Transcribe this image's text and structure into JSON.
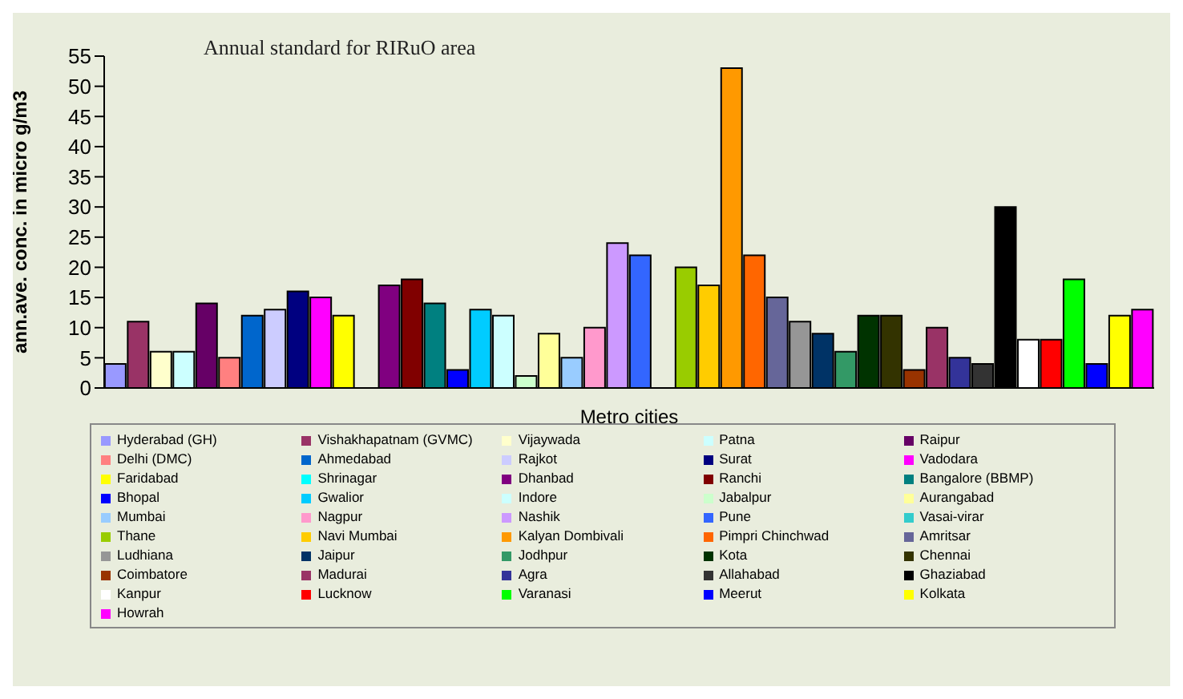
{
  "chart_data": {
    "type": "bar",
    "title": "Annual standard for RIRuO area",
    "xlabel": "Metro cities",
    "ylabel": "ann.ave. conc. in micro g/m3",
    "categories": [
      null,
      null,
      null,
      null,
      null,
      null,
      null,
      null,
      null,
      null,
      null,
      null,
      null,
      null,
      null,
      null,
      null,
      null,
      null,
      null,
      null,
      null,
      null,
      null,
      null,
      null,
      null,
      null,
      null,
      null,
      null,
      null,
      null,
      null,
      null,
      null,
      null,
      null,
      null,
      null,
      null,
      null,
      null,
      null,
      null,
      null
    ],
    "stacked": true,
    "series": [
      {
        "name": "Hyderabad (GH)",
        "color": "#9999ff",
        "values": [
          4,
          null,
          null,
          null,
          null,
          null,
          null,
          null,
          null,
          null,
          null,
          null,
          null,
          null,
          null,
          null,
          null,
          null,
          null,
          null,
          null,
          null,
          null,
          null,
          null,
          null,
          null,
          null,
          null,
          null,
          null,
          null,
          null,
          null,
          null,
          null,
          null,
          null,
          null,
          null,
          null,
          null,
          null,
          null,
          null,
          null
        ]
      },
      {
        "name": "Vishakhapatnam (GVMC)",
        "color": "#993366",
        "values": [
          null,
          11,
          null,
          null,
          null,
          null,
          null,
          null,
          null,
          null,
          null,
          null,
          null,
          null,
          null,
          null,
          null,
          null,
          null,
          null,
          null,
          null,
          null,
          null,
          null,
          null,
          null,
          null,
          null,
          null,
          null,
          null,
          null,
          null,
          null,
          null,
          null,
          null,
          null,
          null,
          null,
          null,
          null,
          null,
          null,
          null
        ]
      },
      {
        "name": "Vijaywada",
        "color": "#ffffcc",
        "values": [
          null,
          null,
          6,
          null,
          null,
          null,
          null,
          null,
          null,
          null,
          null,
          null,
          null,
          null,
          null,
          null,
          null,
          null,
          null,
          null,
          null,
          null,
          null,
          null,
          null,
          null,
          null,
          null,
          null,
          null,
          null,
          null,
          null,
          null,
          null,
          null,
          null,
          null,
          null,
          null,
          null,
          null,
          null,
          null,
          null,
          null
        ]
      },
      {
        "name": "Patna",
        "color": "#ccffff",
        "values": [
          null,
          null,
          null,
          6,
          null,
          null,
          null,
          null,
          null,
          null,
          null,
          null,
          null,
          null,
          null,
          null,
          null,
          null,
          null,
          null,
          null,
          null,
          null,
          null,
          null,
          null,
          null,
          null,
          null,
          null,
          null,
          null,
          null,
          null,
          null,
          null,
          null,
          null,
          null,
          null,
          null,
          null,
          null,
          null,
          null,
          null
        ]
      },
      {
        "name": "Raipur",
        "color": "#660066",
        "values": [
          null,
          null,
          null,
          null,
          14,
          null,
          null,
          null,
          null,
          null,
          null,
          null,
          null,
          null,
          null,
          null,
          null,
          null,
          null,
          null,
          null,
          null,
          null,
          null,
          null,
          null,
          null,
          null,
          null,
          null,
          null,
          null,
          null,
          null,
          null,
          null,
          null,
          null,
          null,
          null,
          null,
          null,
          null,
          null,
          null,
          null
        ]
      },
      {
        "name": "Delhi (DMC)",
        "color": "#ff8080",
        "values": [
          null,
          null,
          null,
          null,
          null,
          5,
          null,
          null,
          null,
          null,
          null,
          null,
          null,
          null,
          null,
          null,
          null,
          null,
          null,
          null,
          null,
          null,
          null,
          null,
          null,
          null,
          null,
          null,
          null,
          null,
          null,
          null,
          null,
          null,
          null,
          null,
          null,
          null,
          null,
          null,
          null,
          null,
          null,
          null,
          null,
          null
        ]
      },
      {
        "name": "Ahmedabad",
        "color": "#0066cc",
        "values": [
          null,
          null,
          null,
          null,
          null,
          null,
          12,
          null,
          null,
          null,
          null,
          null,
          null,
          null,
          null,
          null,
          null,
          null,
          null,
          null,
          null,
          null,
          null,
          null,
          null,
          null,
          null,
          null,
          null,
          null,
          null,
          null,
          null,
          null,
          null,
          null,
          null,
          null,
          null,
          null,
          null,
          null,
          null,
          null,
          null,
          null
        ]
      },
      {
        "name": "Rajkot",
        "color": "#ccccff",
        "values": [
          null,
          null,
          null,
          null,
          null,
          null,
          null,
          13,
          null,
          null,
          null,
          null,
          null,
          null,
          null,
          null,
          null,
          null,
          null,
          null,
          null,
          null,
          null,
          null,
          null,
          null,
          null,
          null,
          null,
          null,
          null,
          null,
          null,
          null,
          null,
          null,
          null,
          null,
          null,
          null,
          null,
          null,
          null,
          null,
          null,
          null
        ]
      },
      {
        "name": "Surat",
        "color": "#000080",
        "values": [
          null,
          null,
          null,
          null,
          null,
          null,
          null,
          null,
          16,
          null,
          null,
          null,
          null,
          null,
          null,
          null,
          null,
          null,
          null,
          null,
          null,
          null,
          null,
          null,
          null,
          null,
          null,
          null,
          null,
          null,
          null,
          null,
          null,
          null,
          null,
          null,
          null,
          null,
          null,
          null,
          null,
          null,
          null,
          null,
          null,
          null
        ]
      },
      {
        "name": "Vadodara",
        "color": "#ff00ff",
        "values": [
          null,
          null,
          null,
          null,
          null,
          null,
          null,
          null,
          null,
          15,
          null,
          null,
          null,
          null,
          null,
          null,
          null,
          null,
          null,
          null,
          null,
          null,
          null,
          null,
          null,
          null,
          null,
          null,
          null,
          null,
          null,
          null,
          null,
          null,
          null,
          null,
          null,
          null,
          null,
          null,
          null,
          null,
          null,
          null,
          null,
          null
        ]
      },
      {
        "name": "Faridabad",
        "color": "#ffff00",
        "values": [
          null,
          null,
          null,
          null,
          null,
          null,
          null,
          null,
          null,
          null,
          12,
          null,
          null,
          null,
          null,
          null,
          null,
          null,
          null,
          null,
          null,
          null,
          null,
          null,
          null,
          null,
          null,
          null,
          null,
          null,
          null,
          null,
          null,
          null,
          null,
          null,
          null,
          null,
          null,
          null,
          null,
          null,
          null,
          null,
          null,
          null
        ]
      },
      {
        "name": "Shrinagar",
        "color": "#00ffff",
        "values": [
          null,
          null,
          null,
          null,
          null,
          null,
          null,
          null,
          null,
          null,
          null,
          null,
          null,
          null,
          null,
          null,
          null,
          null,
          null,
          null,
          null,
          null,
          null,
          null,
          null,
          null,
          null,
          null,
          null,
          null,
          null,
          null,
          null,
          null,
          null,
          null,
          null,
          null,
          null,
          null,
          null,
          null,
          null,
          null,
          null,
          null
        ]
      },
      {
        "name": "Dhanbad",
        "color": "#800080",
        "values": [
          null,
          null,
          null,
          null,
          null,
          null,
          null,
          null,
          null,
          null,
          null,
          null,
          17,
          null,
          null,
          null,
          null,
          null,
          null,
          null,
          null,
          null,
          null,
          null,
          null,
          null,
          null,
          null,
          null,
          null,
          null,
          null,
          null,
          null,
          null,
          null,
          null,
          null,
          null,
          null,
          null,
          null,
          null,
          null,
          null,
          null
        ]
      },
      {
        "name": "Ranchi",
        "color": "#800000",
        "values": [
          null,
          null,
          null,
          null,
          null,
          null,
          null,
          null,
          null,
          null,
          null,
          null,
          null,
          18,
          null,
          null,
          null,
          null,
          null,
          null,
          null,
          null,
          null,
          null,
          null,
          null,
          null,
          null,
          null,
          null,
          null,
          null,
          null,
          null,
          null,
          null,
          null,
          null,
          null,
          null,
          null,
          null,
          null,
          null,
          null,
          null
        ]
      },
      {
        "name": "Bangalore (BBMP)",
        "color": "#008080",
        "values": [
          null,
          null,
          null,
          null,
          null,
          null,
          null,
          null,
          null,
          null,
          null,
          null,
          null,
          null,
          14,
          null,
          null,
          null,
          null,
          null,
          null,
          null,
          null,
          null,
          null,
          null,
          null,
          null,
          null,
          null,
          null,
          null,
          null,
          null,
          null,
          null,
          null,
          null,
          null,
          null,
          null,
          null,
          null,
          null,
          null,
          null
        ]
      },
      {
        "name": "Bhopal",
        "color": "#0000ff",
        "values": [
          null,
          null,
          null,
          null,
          null,
          null,
          null,
          null,
          null,
          null,
          null,
          null,
          null,
          null,
          null,
          3,
          null,
          null,
          null,
          null,
          null,
          null,
          null,
          null,
          null,
          null,
          null,
          null,
          null,
          null,
          null,
          null,
          null,
          null,
          null,
          null,
          null,
          null,
          null,
          null,
          null,
          null,
          null,
          null,
          null,
          null
        ]
      },
      {
        "name": "Gwalior",
        "color": "#00ccff",
        "values": [
          null,
          null,
          null,
          null,
          null,
          null,
          null,
          null,
          null,
          null,
          null,
          null,
          null,
          null,
          null,
          null,
          13,
          null,
          null,
          null,
          null,
          null,
          null,
          null,
          null,
          null,
          null,
          null,
          null,
          null,
          null,
          null,
          null,
          null,
          null,
          null,
          null,
          null,
          null,
          null,
          null,
          null,
          null,
          null,
          null,
          null
        ]
      },
      {
        "name": "Indore",
        "color": "#ccffff",
        "values": [
          null,
          null,
          null,
          null,
          null,
          null,
          null,
          null,
          null,
          null,
          null,
          null,
          null,
          null,
          null,
          null,
          null,
          12,
          null,
          null,
          null,
          null,
          null,
          null,
          null,
          null,
          null,
          null,
          null,
          null,
          null,
          null,
          null,
          null,
          null,
          null,
          null,
          null,
          null,
          null,
          null,
          null,
          null,
          null,
          null,
          null
        ]
      },
      {
        "name": "Jabalpur",
        "color": "#ccffcc",
        "values": [
          null,
          null,
          null,
          null,
          null,
          null,
          null,
          null,
          null,
          null,
          null,
          null,
          null,
          null,
          null,
          null,
          null,
          null,
          2,
          null,
          null,
          null,
          null,
          null,
          null,
          null,
          null,
          null,
          null,
          null,
          null,
          null,
          null,
          null,
          null,
          null,
          null,
          null,
          null,
          null,
          null,
          null,
          null,
          null,
          null,
          null
        ]
      },
      {
        "name": "Aurangabad",
        "color": "#ffff99",
        "values": [
          null,
          null,
          null,
          null,
          null,
          null,
          null,
          null,
          null,
          null,
          null,
          null,
          null,
          null,
          null,
          null,
          null,
          null,
          null,
          9,
          null,
          null,
          null,
          null,
          null,
          null,
          null,
          null,
          null,
          null,
          null,
          null,
          null,
          null,
          null,
          null,
          null,
          null,
          null,
          null,
          null,
          null,
          null,
          null,
          null,
          null
        ]
      },
      {
        "name": "Mumbai",
        "color": "#99ccff",
        "values": [
          null,
          null,
          null,
          null,
          null,
          null,
          null,
          null,
          null,
          null,
          null,
          null,
          null,
          null,
          null,
          null,
          null,
          null,
          null,
          null,
          5,
          null,
          null,
          null,
          null,
          null,
          null,
          null,
          null,
          null,
          null,
          null,
          null,
          null,
          null,
          null,
          null,
          null,
          null,
          null,
          null,
          null,
          null,
          null,
          null,
          null
        ]
      },
      {
        "name": "Nagpur",
        "color": "#ff99cc",
        "values": [
          null,
          null,
          null,
          null,
          null,
          null,
          null,
          null,
          null,
          null,
          null,
          null,
          null,
          null,
          null,
          null,
          null,
          null,
          null,
          null,
          null,
          10,
          null,
          null,
          null,
          null,
          null,
          null,
          null,
          null,
          null,
          null,
          null,
          null,
          null,
          null,
          null,
          null,
          null,
          null,
          null,
          null,
          null,
          null,
          null,
          null
        ]
      },
      {
        "name": "Nashik",
        "color": "#cc99ff",
        "values": [
          null,
          null,
          null,
          null,
          null,
          null,
          null,
          null,
          null,
          null,
          null,
          null,
          null,
          null,
          null,
          null,
          null,
          null,
          null,
          null,
          null,
          null,
          24,
          null,
          null,
          null,
          null,
          null,
          null,
          null,
          null,
          null,
          null,
          null,
          null,
          null,
          null,
          null,
          null,
          null,
          null,
          null,
          null,
          null,
          null,
          null
        ]
      },
      {
        "name": "Pune",
        "color": "#3366ff",
        "values": [
          null,
          null,
          null,
          null,
          null,
          null,
          null,
          null,
          null,
          null,
          null,
          null,
          null,
          null,
          null,
          null,
          null,
          null,
          null,
          null,
          null,
          null,
          null,
          22,
          null,
          null,
          null,
          null,
          null,
          null,
          null,
          null,
          null,
          null,
          null,
          null,
          null,
          null,
          null,
          null,
          null,
          null,
          null,
          null,
          null,
          null
        ]
      },
      {
        "name": "Vasai-virar",
        "color": "#33cccc",
        "values": [
          null,
          null,
          null,
          null,
          null,
          null,
          null,
          null,
          null,
          null,
          null,
          null,
          null,
          null,
          null,
          null,
          null,
          null,
          null,
          null,
          null,
          null,
          null,
          null,
          null,
          null,
          null,
          null,
          null,
          null,
          null,
          null,
          null,
          null,
          null,
          null,
          null,
          null,
          null,
          null,
          null,
          null,
          null,
          null,
          null,
          null
        ]
      },
      {
        "name": "Thane",
        "color": "#99cc00",
        "values": [
          null,
          null,
          null,
          null,
          null,
          null,
          null,
          null,
          null,
          null,
          null,
          null,
          null,
          null,
          null,
          null,
          null,
          null,
          null,
          null,
          null,
          null,
          null,
          null,
          null,
          20,
          null,
          null,
          null,
          null,
          null,
          null,
          null,
          null,
          null,
          null,
          null,
          null,
          null,
          null,
          null,
          null,
          null,
          null,
          null,
          null
        ]
      },
      {
        "name": "Navi Mumbai",
        "color": "#ffcc00",
        "values": [
          null,
          null,
          null,
          null,
          null,
          null,
          null,
          null,
          null,
          null,
          null,
          null,
          null,
          null,
          null,
          null,
          null,
          null,
          null,
          null,
          null,
          null,
          null,
          null,
          null,
          null,
          17,
          null,
          null,
          null,
          null,
          null,
          null,
          null,
          null,
          null,
          null,
          null,
          null,
          null,
          null,
          null,
          null,
          null,
          null,
          null
        ]
      },
      {
        "name": "Kalyan Dombivali",
        "color": "#ff9900",
        "values": [
          null,
          null,
          null,
          null,
          null,
          null,
          null,
          null,
          null,
          null,
          null,
          null,
          null,
          null,
          null,
          null,
          null,
          null,
          null,
          null,
          null,
          null,
          null,
          null,
          null,
          null,
          null,
          53,
          null,
          null,
          null,
          null,
          null,
          null,
          null,
          null,
          null,
          null,
          null,
          null,
          null,
          null,
          null,
          null,
          null,
          null
        ]
      },
      {
        "name": "Pimpri Chinchwad",
        "color": "#ff6600",
        "values": [
          null,
          null,
          null,
          null,
          null,
          null,
          null,
          null,
          null,
          null,
          null,
          null,
          null,
          null,
          null,
          null,
          null,
          null,
          null,
          null,
          null,
          null,
          null,
          null,
          null,
          null,
          null,
          null,
          22,
          null,
          null,
          null,
          null,
          null,
          null,
          null,
          null,
          null,
          null,
          null,
          null,
          null,
          null,
          null,
          null,
          null
        ]
      },
      {
        "name": "Amritsar",
        "color": "#666699",
        "values": [
          null,
          null,
          null,
          null,
          null,
          null,
          null,
          null,
          null,
          null,
          null,
          null,
          null,
          null,
          null,
          null,
          null,
          null,
          null,
          null,
          null,
          null,
          null,
          null,
          null,
          null,
          null,
          null,
          null,
          15,
          null,
          null,
          null,
          null,
          null,
          null,
          null,
          null,
          null,
          null,
          null,
          null,
          null,
          null,
          null,
          null
        ]
      },
      {
        "name": "Ludhiana",
        "color": "#969696",
        "values": [
          null,
          null,
          null,
          null,
          null,
          null,
          null,
          null,
          null,
          null,
          null,
          null,
          null,
          null,
          null,
          null,
          null,
          null,
          null,
          null,
          null,
          null,
          null,
          null,
          null,
          null,
          null,
          null,
          null,
          null,
          11,
          null,
          null,
          null,
          null,
          null,
          null,
          null,
          null,
          null,
          null,
          null,
          null,
          null,
          null,
          null
        ]
      },
      {
        "name": "Jaipur",
        "color": "#003366",
        "values": [
          null,
          null,
          null,
          null,
          null,
          null,
          null,
          null,
          null,
          null,
          null,
          null,
          null,
          null,
          null,
          null,
          null,
          null,
          null,
          null,
          null,
          null,
          null,
          null,
          null,
          null,
          null,
          null,
          null,
          null,
          null,
          9,
          null,
          null,
          null,
          null,
          null,
          null,
          null,
          null,
          null,
          null,
          null,
          null,
          null,
          null
        ]
      },
      {
        "name": "Jodhpur",
        "color": "#339966",
        "values": [
          null,
          null,
          null,
          null,
          null,
          null,
          null,
          null,
          null,
          null,
          null,
          null,
          null,
          null,
          null,
          null,
          null,
          null,
          null,
          null,
          null,
          null,
          null,
          null,
          null,
          null,
          null,
          null,
          null,
          null,
          null,
          null,
          6,
          null,
          null,
          null,
          null,
          null,
          null,
          null,
          null,
          null,
          null,
          null,
          null,
          null
        ]
      },
      {
        "name": "Kota",
        "color": "#003300",
        "values": [
          null,
          null,
          null,
          null,
          null,
          null,
          null,
          null,
          null,
          null,
          null,
          null,
          null,
          null,
          null,
          null,
          null,
          null,
          null,
          null,
          null,
          null,
          null,
          null,
          null,
          null,
          null,
          null,
          null,
          null,
          null,
          null,
          null,
          12,
          null,
          null,
          null,
          null,
          null,
          null,
          null,
          null,
          null,
          null,
          null,
          null
        ]
      },
      {
        "name": "Chennai",
        "color": "#333300",
        "values": [
          null,
          null,
          null,
          null,
          null,
          null,
          null,
          null,
          null,
          null,
          null,
          null,
          null,
          null,
          null,
          null,
          null,
          null,
          null,
          null,
          null,
          null,
          null,
          null,
          null,
          null,
          null,
          null,
          null,
          null,
          null,
          null,
          null,
          null,
          12,
          null,
          null,
          null,
          null,
          null,
          null,
          null,
          null,
          null,
          null,
          null
        ]
      },
      {
        "name": "Coimbatore",
        "color": "#993300",
        "values": [
          null,
          null,
          null,
          null,
          null,
          null,
          null,
          null,
          null,
          null,
          null,
          null,
          null,
          null,
          null,
          null,
          null,
          null,
          null,
          null,
          null,
          null,
          null,
          null,
          null,
          null,
          null,
          null,
          null,
          null,
          null,
          null,
          null,
          null,
          null,
          3,
          null,
          null,
          null,
          null,
          null,
          null,
          null,
          null,
          null,
          null
        ]
      },
      {
        "name": "Madurai",
        "color": "#993366",
        "values": [
          null,
          null,
          null,
          null,
          null,
          null,
          null,
          null,
          null,
          null,
          null,
          null,
          null,
          null,
          null,
          null,
          null,
          null,
          null,
          null,
          null,
          null,
          null,
          null,
          null,
          null,
          null,
          null,
          null,
          null,
          null,
          null,
          null,
          null,
          null,
          null,
          10,
          null,
          null,
          null,
          null,
          null,
          null,
          null,
          null,
          null
        ]
      },
      {
        "name": "Agra",
        "color": "#333399",
        "values": [
          null,
          null,
          null,
          null,
          null,
          null,
          null,
          null,
          null,
          null,
          null,
          null,
          null,
          null,
          null,
          null,
          null,
          null,
          null,
          null,
          null,
          null,
          null,
          null,
          null,
          null,
          null,
          null,
          null,
          null,
          null,
          null,
          null,
          null,
          null,
          null,
          null,
          5,
          null,
          null,
          null,
          null,
          null,
          null,
          null,
          null
        ]
      },
      {
        "name": "Allahabad",
        "color": "#333333",
        "values": [
          null,
          null,
          null,
          null,
          null,
          null,
          null,
          null,
          null,
          null,
          null,
          null,
          null,
          null,
          null,
          null,
          null,
          null,
          null,
          null,
          null,
          null,
          null,
          null,
          null,
          null,
          null,
          null,
          null,
          null,
          null,
          null,
          null,
          null,
          null,
          null,
          null,
          null,
          4,
          null,
          null,
          null,
          null,
          null,
          null,
          null
        ]
      },
      {
        "name": "Ghaziabad",
        "color": "#000000",
        "values": [
          null,
          null,
          null,
          null,
          null,
          null,
          null,
          null,
          null,
          null,
          null,
          null,
          null,
          null,
          null,
          null,
          null,
          null,
          null,
          null,
          null,
          null,
          null,
          null,
          null,
          null,
          null,
          null,
          null,
          null,
          null,
          null,
          null,
          null,
          null,
          null,
          null,
          null,
          null,
          30,
          null,
          null,
          null,
          null,
          null,
          null
        ]
      },
      {
        "name": "Kanpur",
        "color": "#ffffff",
        "values": [
          null,
          null,
          null,
          null,
          null,
          null,
          null,
          null,
          null,
          null,
          null,
          null,
          null,
          null,
          null,
          null,
          null,
          null,
          null,
          null,
          null,
          null,
          null,
          null,
          null,
          null,
          null,
          null,
          null,
          null,
          null,
          null,
          null,
          null,
          null,
          null,
          null,
          null,
          null,
          null,
          8,
          null,
          null,
          null,
          null,
          null
        ]
      },
      {
        "name": "Lucknow",
        "color": "#ff0000",
        "values": [
          null,
          null,
          null,
          null,
          null,
          null,
          null,
          null,
          null,
          null,
          null,
          null,
          null,
          null,
          null,
          null,
          null,
          null,
          null,
          null,
          null,
          null,
          null,
          null,
          null,
          null,
          null,
          null,
          null,
          null,
          null,
          null,
          null,
          null,
          null,
          null,
          null,
          null,
          null,
          null,
          null,
          8,
          null,
          null,
          null,
          null
        ]
      },
      {
        "name": "Varanasi",
        "color": "#00ff00",
        "values": [
          null,
          null,
          null,
          null,
          null,
          null,
          null,
          null,
          null,
          null,
          null,
          null,
          null,
          null,
          null,
          null,
          null,
          null,
          null,
          null,
          null,
          null,
          null,
          null,
          null,
          null,
          null,
          null,
          null,
          null,
          null,
          null,
          null,
          null,
          null,
          null,
          null,
          null,
          null,
          null,
          null,
          null,
          18,
          null,
          null,
          null
        ]
      },
      {
        "name": "Meerut",
        "color": "#0000ff",
        "values": [
          null,
          null,
          null,
          null,
          null,
          null,
          null,
          null,
          null,
          null,
          null,
          null,
          null,
          null,
          null,
          null,
          null,
          null,
          null,
          null,
          null,
          null,
          null,
          null,
          null,
          null,
          null,
          null,
          null,
          null,
          null,
          null,
          null,
          null,
          null,
          null,
          null,
          null,
          null,
          null,
          null,
          null,
          null,
          4,
          null,
          null
        ]
      },
      {
        "name": "Kolkata",
        "color": "#ffff00",
        "values": [
          null,
          null,
          null,
          null,
          null,
          null,
          null,
          null,
          null,
          null,
          null,
          null,
          null,
          null,
          null,
          null,
          null,
          null,
          null,
          null,
          null,
          null,
          null,
          null,
          null,
          null,
          null,
          null,
          null,
          null,
          null,
          null,
          null,
          null,
          null,
          null,
          null,
          null,
          null,
          null,
          null,
          null,
          null,
          null,
          12,
          null
        ]
      },
      {
        "name": "Howrah",
        "color": "#ff00ff",
        "values": [
          null,
          null,
          null,
          null,
          null,
          null,
          null,
          null,
          null,
          null,
          null,
          null,
          null,
          null,
          null,
          null,
          null,
          null,
          null,
          null,
          null,
          null,
          null,
          null,
          null,
          null,
          null,
          null,
          null,
          null,
          null,
          null,
          null,
          null,
          null,
          null,
          null,
          null,
          null,
          null,
          null,
          null,
          null,
          null,
          null,
          13
        ]
      }
    ],
    "ylim": [
      0,
      55
    ],
    "yticks": [
      0,
      5,
      10,
      15,
      20,
      25,
      30,
      35,
      40,
      45,
      50,
      55
    ],
    "tick_labels": "y",
    "legend": "bottom"
  }
}
